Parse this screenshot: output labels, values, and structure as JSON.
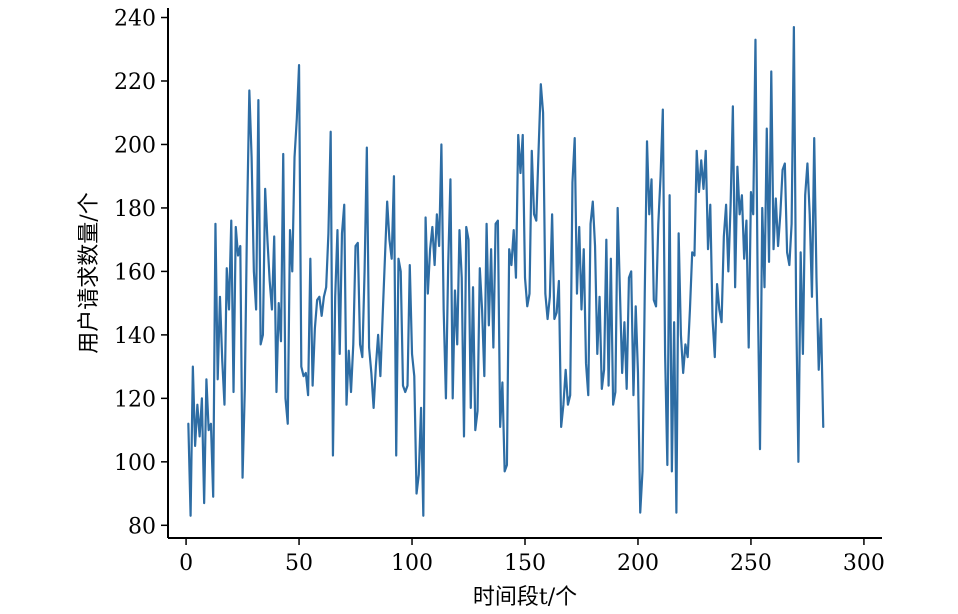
{
  "chart_data": {
    "type": "line",
    "title": "",
    "xlabel": "时间段t/个",
    "ylabel": "用户请求数量/个",
    "xlim": [
      -8,
      308
    ],
    "ylim": [
      76,
      243
    ],
    "xticks": [
      0,
      50,
      100,
      150,
      200,
      250,
      300
    ],
    "yticks": [
      80,
      100,
      120,
      140,
      160,
      180,
      200,
      220,
      240
    ],
    "xtick_labels": [
      "0",
      "50",
      "100",
      "150",
      "200",
      "250",
      "300"
    ],
    "ytick_labels": [
      "80",
      "100",
      "120",
      "140",
      "160",
      "180",
      "200",
      "220",
      "240"
    ],
    "grid": false,
    "legend": "none",
    "colors": {
      "series": "#2e6da4",
      "axis": "#000000"
    },
    "x_start": 1,
    "x_step": 1,
    "series": [
      {
        "values": [
          112,
          83,
          130,
          105,
          118,
          108,
          120,
          87,
          126,
          110,
          112,
          89,
          175,
          126,
          152,
          132,
          118,
          161,
          148,
          176,
          122,
          174,
          165,
          168,
          95,
          123,
          177,
          217,
          196,
          160,
          148,
          214,
          137,
          140,
          186,
          170,
          157,
          148,
          171,
          122,
          150,
          138,
          197,
          120,
          112,
          173,
          160,
          196,
          208,
          225,
          130,
          127,
          128,
          121,
          164,
          124,
          142,
          151,
          152,
          146,
          152,
          155,
          172,
          204,
          102,
          152,
          173,
          134,
          172,
          181,
          118,
          135,
          122,
          137,
          168,
          169,
          137,
          133,
          160,
          199,
          136,
          128,
          117,
          130,
          140,
          127,
          146,
          164,
          182,
          170,
          164,
          190,
          102,
          164,
          160,
          124,
          122,
          124,
          162,
          134,
          127,
          90,
          96,
          117,
          83,
          177,
          153,
          167,
          174,
          162,
          178,
          168,
          200,
          148,
          120,
          162,
          189,
          120,
          154,
          137,
          173,
          158,
          108,
          174,
          170,
          117,
          155,
          110,
          116,
          161,
          148,
          127,
          175,
          143,
          167,
          136,
          175,
          176,
          111,
          125,
          97,
          99,
          167,
          162,
          173,
          158,
          203,
          191,
          203,
          158,
          149,
          153,
          198,
          178,
          176,
          198,
          219,
          210,
          153,
          145,
          152,
          178,
          145,
          147,
          157,
          111,
          118,
          129,
          118,
          121,
          188,
          202,
          153,
          174,
          148,
          167,
          131,
          121,
          175,
          182,
          168,
          134,
          152,
          123,
          129,
          170,
          124,
          164,
          118,
          122,
          180,
          154,
          128,
          144,
          123,
          158,
          160,
          121,
          149,
          128,
          84,
          97,
          153,
          201,
          178,
          189,
          151,
          149,
          175,
          190,
          211,
          134,
          99,
          184,
          97,
          144,
          84,
          172,
          140,
          128,
          137,
          133,
          148,
          166,
          165,
          198,
          185,
          195,
          186,
          198,
          167,
          181,
          145,
          133,
          156,
          148,
          144,
          171,
          181,
          160,
          181,
          212,
          155,
          193,
          178,
          184,
          164,
          176,
          136,
          185,
          178,
          233,
          154,
          104,
          180,
          155,
          205,
          163,
          223,
          167,
          183,
          168,
          178,
          192,
          194,
          166,
          162,
          175,
          237,
          149,
          100,
          166,
          134,
          184,
          194,
          178,
          152,
          202,
          158,
          129,
          145,
          111
        ]
      }
    ]
  }
}
